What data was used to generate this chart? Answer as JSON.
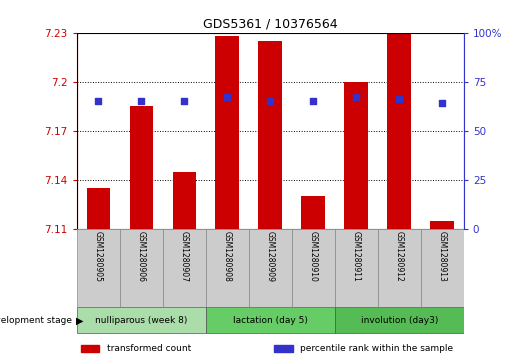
{
  "title": "GDS5361 / 10376564",
  "samples": [
    "GSM1280905",
    "GSM1280906",
    "GSM1280907",
    "GSM1280908",
    "GSM1280909",
    "GSM1280910",
    "GSM1280911",
    "GSM1280912",
    "GSM1280913"
  ],
  "bar_values": [
    7.135,
    7.185,
    7.145,
    7.228,
    7.225,
    7.13,
    7.2,
    7.229,
    7.115
  ],
  "percentile_values": [
    65,
    65,
    65,
    67,
    65,
    65,
    67,
    66,
    64
  ],
  "y_min": 7.11,
  "y_max": 7.23,
  "y_ticks": [
    7.11,
    7.14,
    7.17,
    7.2,
    7.23
  ],
  "y_tick_labels": [
    "7.11",
    "7.14",
    "7.17",
    "7.2",
    "7.23"
  ],
  "right_y_ticks": [
    0,
    25,
    50,
    75,
    100
  ],
  "right_y_tick_labels": [
    "0",
    "25",
    "50",
    "75",
    "100%"
  ],
  "bar_color": "#cc0000",
  "percentile_color": "#3333cc",
  "bar_width": 0.55,
  "groups": [
    {
      "label": "nulliparous (week 8)",
      "indices": [
        0,
        1,
        2
      ],
      "color": "#aaddaa"
    },
    {
      "label": "lactation (day 5)",
      "indices": [
        3,
        4,
        5
      ],
      "color": "#66cc66"
    },
    {
      "label": "involution (day3)",
      "indices": [
        6,
        7,
        8
      ],
      "color": "#55bb55"
    }
  ],
  "dev_stage_label": "development stage",
  "dev_stage_arrow": "▶",
  "legend_items": [
    {
      "label": "transformed count",
      "color": "#cc0000"
    },
    {
      "label": "percentile rank within the sample",
      "color": "#3333cc"
    }
  ],
  "plot_bg_color": "#ffffff",
  "tick_label_bg": "#cccccc",
  "title_color": "#000000",
  "left_axis_color": "#cc0000",
  "right_axis_color": "#3333cc",
  "grid_color": "#000000",
  "fig_bg": "#ffffff"
}
